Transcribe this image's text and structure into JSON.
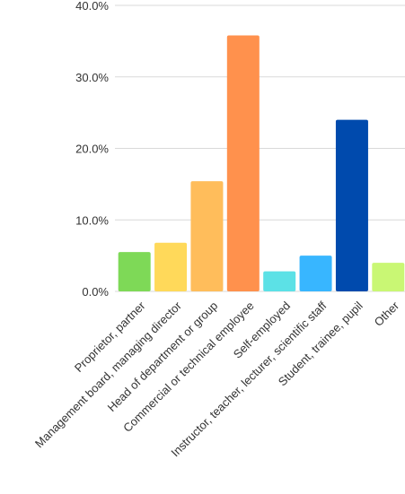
{
  "chart_data": {
    "type": "bar",
    "categories": [
      "Proprietor, partner",
      "Management board, managing director",
      "Head of department or group",
      "Commercial or technical employee",
      "Self-employed",
      "Instructor, teacher, lecturer, scientific staff",
      "Student, trainee, pupil",
      "Other"
    ],
    "values": [
      5.5,
      6.8,
      15.4,
      35.8,
      2.8,
      5.0,
      24.0,
      4.0
    ],
    "colors": [
      "#7ed957",
      "#ffd95a",
      "#ffbd5b",
      "#ff914d",
      "#5ce1e6",
      "#38b6ff",
      "#004aad",
      "#c9f774"
    ],
    "ylim": [
      0,
      40
    ],
    "yticks": [
      "0.0%",
      "10.0%",
      "20.0%",
      "30.0%",
      "40.0%"
    ],
    "ytick_values": [
      0,
      10,
      20,
      30,
      40
    ],
    "grid": true,
    "legend": "none"
  }
}
